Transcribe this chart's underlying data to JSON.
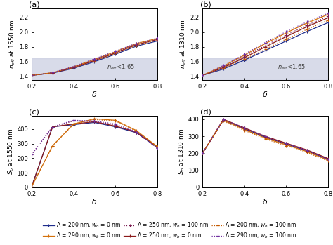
{
  "delta": [
    0.2,
    0.3,
    0.4,
    0.5,
    0.6,
    0.7,
    0.8
  ],
  "neff_1550": {
    "L200_wb0": [
      1.415,
      1.445,
      1.51,
      1.6,
      1.7,
      1.81,
      1.88
    ],
    "L250_wb0": [
      1.415,
      1.448,
      1.52,
      1.615,
      1.718,
      1.83,
      1.9
    ],
    "L290_wb0": [
      1.415,
      1.45,
      1.53,
      1.63,
      1.735,
      1.845,
      1.915
    ],
    "L200_wb100": [
      1.415,
      1.447,
      1.518,
      1.608,
      1.71,
      1.82,
      1.89
    ],
    "L250_wb100": [
      1.415,
      1.449,
      1.525,
      1.62,
      1.725,
      1.835,
      1.905
    ],
    "L290_wb100": [
      1.415,
      1.452,
      1.535,
      1.638,
      1.742,
      1.85,
      1.918
    ]
  },
  "neff_1310": {
    "L200_wb0": [
      1.415,
      1.5,
      1.62,
      1.75,
      1.88,
      2.01,
      2.13
    ],
    "L250_wb0": [
      1.415,
      1.52,
      1.655,
      1.8,
      1.94,
      2.075,
      2.195
    ],
    "L290_wb0": [
      1.415,
      1.54,
      1.688,
      1.845,
      1.99,
      2.125,
      2.24
    ],
    "L200_wb100": [
      1.415,
      1.51,
      1.635,
      1.77,
      1.905,
      2.04,
      2.16
    ],
    "L250_wb100": [
      1.415,
      1.53,
      1.67,
      1.82,
      1.96,
      2.095,
      2.215
    ],
    "L290_wb100": [
      1.415,
      1.548,
      1.7,
      1.86,
      2.008,
      2.14,
      2.255
    ]
  },
  "S_1550": {
    "L200_wb0": [
      5,
      415,
      430,
      445,
      415,
      375,
      275
    ],
    "L250_wb0": [
      5,
      415,
      435,
      450,
      420,
      380,
      280
    ],
    "L290_wb0": [
      5,
      285,
      435,
      470,
      460,
      390,
      280
    ],
    "L200_wb100": [
      5,
      285,
      432,
      465,
      455,
      385,
      275
    ],
    "L250_wb100": [
      225,
      415,
      455,
      450,
      430,
      375,
      270
    ],
    "L290_wb100": [
      225,
      415,
      460,
      455,
      435,
      380,
      270
    ]
  },
  "S_1310": {
    "L200_wb0": [
      200,
      395,
      345,
      295,
      255,
      215,
      165
    ],
    "L250_wb0": [
      200,
      400,
      350,
      300,
      260,
      220,
      170
    ],
    "L290_wb0": [
      200,
      395,
      340,
      290,
      250,
      210,
      160
    ],
    "L200_wb100": [
      200,
      390,
      335,
      285,
      245,
      205,
      155
    ],
    "L250_wb100": [
      200,
      395,
      345,
      295,
      255,
      215,
      165
    ],
    "L290_wb100": [
      200,
      400,
      350,
      300,
      258,
      218,
      165
    ]
  },
  "shade_color": "#c8cce0",
  "shade_alpha": 0.7,
  "neff_threshold": 1.65,
  "ylim_neff": [
    1.35,
    2.32
  ],
  "ylim_S_1550": [
    0,
    490
  ],
  "ylim_S_1310": [
    0,
    420
  ],
  "xlim": [
    0.2,
    0.8
  ],
  "yticks_neff": [
    1.4,
    1.6,
    1.8,
    2.0,
    2.2
  ],
  "yticks_S_1550": [
    0,
    100,
    200,
    300,
    400
  ],
  "yticks_S_1310": [
    0,
    100,
    200,
    300,
    400
  ],
  "xticks": [
    0.2,
    0.4,
    0.6,
    0.8
  ]
}
